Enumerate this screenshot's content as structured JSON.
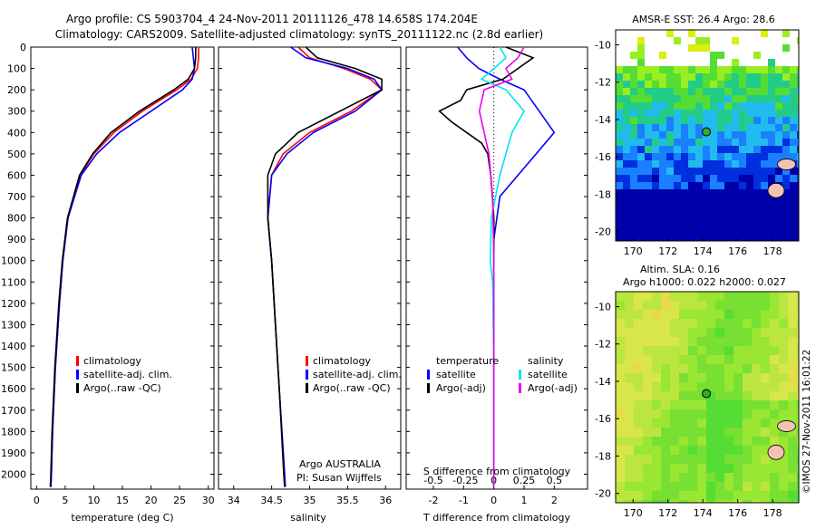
{
  "title": {
    "line1": "Argo profile: CS 5903704_4 24-Nov-2011 20111126_478 14.658S 174.204E",
    "line2": "Climatology: CARS2009. Satellite-adjusted climatology: synTS_20111122.nc (2.8d earlier)"
  },
  "colors": {
    "climatology": "#ff0000",
    "satellite": "#0000ff",
    "argo": "#000000",
    "sat_sal": "#00e5ee",
    "argo_sal": "#ee00ee"
  },
  "chart_data": [
    {
      "type": "line",
      "name": "temperature-profile",
      "xlabel": "temperature (deg C)",
      "ylabel": "",
      "xlim": [
        -1,
        31
      ],
      "ylim": [
        2070,
        0
      ],
      "xticks": [
        0,
        5,
        10,
        15,
        20,
        25,
        30
      ],
      "yticks": [
        0,
        100,
        200,
        300,
        400,
        500,
        600,
        700,
        800,
        900,
        1000,
        1100,
        1200,
        1300,
        1400,
        1500,
        1600,
        1700,
        1800,
        1900,
        2000
      ],
      "legend": [
        "climatology",
        "satellite-adj. clim.",
        "Argo(..raw -QC)"
      ],
      "series": [
        {
          "name": "climatology",
          "depth": [
            0,
            50,
            100,
            150,
            200,
            300,
            400,
            500,
            600,
            800,
            1000,
            1200,
            1500,
            1800,
            2000,
            2060
          ],
          "values": [
            28.3,
            28.3,
            28.1,
            27.0,
            24.5,
            18.5,
            13.5,
            10.0,
            7.6,
            5.5,
            4.6,
            4.0,
            3.3,
            2.8,
            2.6,
            2.5
          ]
        },
        {
          "name": "satellite-adj. clim.",
          "depth": [
            0,
            50,
            100,
            150,
            200,
            300,
            400,
            500,
            600,
            800,
            1000,
            1200,
            1500,
            1800,
            2000,
            2060
          ],
          "values": [
            27.2,
            27.4,
            27.6,
            27.2,
            25.5,
            20.0,
            14.5,
            10.5,
            7.8,
            5.5,
            4.6,
            4.0,
            3.3,
            2.8,
            2.6,
            2.5
          ]
        },
        {
          "name": "Argo(..raw -QC)",
          "depth": [
            0,
            50,
            100,
            150,
            200,
            300,
            400,
            500,
            600,
            800,
            1000,
            1200,
            1500,
            1800,
            2000,
            2060
          ],
          "values": [
            27.8,
            27.8,
            27.6,
            26.5,
            24.0,
            18.0,
            13.0,
            9.8,
            7.5,
            5.4,
            4.5,
            3.9,
            3.2,
            2.7,
            2.5,
            2.4
          ]
        }
      ]
    },
    {
      "type": "line",
      "name": "salinity-profile",
      "xlabel": "salinity",
      "ylabel": "",
      "xlim": [
        33.8,
        36.2
      ],
      "ylim": [
        2070,
        0
      ],
      "xticks": [
        34,
        34.5,
        35,
        35.5,
        36
      ],
      "legend": [
        "climatology",
        "satellite-adj. clim.",
        "Argo(..raw -QC)"
      ],
      "annotation": [
        "Argo AUSTRALIA",
        "PI: Susan Wijffels"
      ],
      "series": [
        {
          "name": "climatology",
          "depth": [
            0,
            50,
            100,
            150,
            200,
            300,
            400,
            500,
            600,
            800,
            1000,
            1300,
            1600,
            2000,
            2060
          ],
          "values": [
            34.85,
            35.0,
            35.45,
            35.8,
            35.95,
            35.55,
            35.0,
            34.65,
            34.5,
            34.45,
            34.5,
            34.55,
            34.6,
            34.67,
            34.68
          ]
        },
        {
          "name": "satellite-adj. clim.",
          "depth": [
            0,
            50,
            100,
            150,
            200,
            300,
            400,
            500,
            600,
            800,
            1000,
            1300,
            1600,
            2000,
            2060
          ],
          "values": [
            34.75,
            34.95,
            35.5,
            35.85,
            35.95,
            35.6,
            35.05,
            34.7,
            34.5,
            34.45,
            34.5,
            34.55,
            34.6,
            34.67,
            34.68
          ]
        },
        {
          "name": "Argo(..raw -QC)",
          "depth": [
            0,
            50,
            100,
            150,
            200,
            300,
            400,
            500,
            600,
            800,
            1000,
            1300,
            1600,
            2000,
            2060
          ],
          "values": [
            34.95,
            35.1,
            35.6,
            35.95,
            35.95,
            35.4,
            34.85,
            34.55,
            34.45,
            34.45,
            34.5,
            34.55,
            34.6,
            34.66,
            34.67
          ]
        }
      ]
    },
    {
      "type": "line",
      "name": "difference-profile",
      "xlabel": "T difference from climatology",
      "xlabel2": "S difference from climatology",
      "xlim": [
        -2.9,
        3.1
      ],
      "ylim": [
        2070,
        0
      ],
      "xticks": [
        -2,
        -1,
        0,
        1,
        2
      ],
      "xticks2": [
        "-0.5",
        "-0.25",
        "0",
        "0.25",
        "0.5"
      ],
      "legend": {
        "temperature": "temperature",
        "salinity": "salinity",
        "sat": "satellite",
        "argo": "Argo(-adj)"
      },
      "series": [
        {
          "name": "temperature satellite",
          "depth": [
            0,
            50,
            100,
            150,
            200,
            300,
            400,
            500,
            700,
            900,
            1100,
            1500,
            2000,
            2060
          ],
          "values": [
            -1.2,
            -0.9,
            -0.5,
            0.2,
            1.0,
            1.5,
            2.0,
            1.4,
            0.2,
            0.0,
            0.0,
            0.0,
            0.0,
            0.0
          ]
        },
        {
          "name": "temperature Argo(-adj)",
          "depth": [
            0,
            50,
            100,
            150,
            200,
            250,
            300,
            350,
            400,
            450,
            500,
            600,
            800,
            1000,
            1500,
            2000,
            2060
          ],
          "values": [
            0.4,
            1.3,
            0.8,
            0.3,
            -0.9,
            -1.1,
            -1.8,
            -1.4,
            -0.9,
            -0.4,
            -0.2,
            -0.1,
            0.0,
            0.0,
            0.0,
            0.0,
            0.0
          ]
        },
        {
          "name": "salinity satellite",
          "depth": [
            0,
            50,
            100,
            150,
            200,
            300,
            400,
            600,
            800,
            1000,
            1100,
            1500,
            2000,
            2060
          ],
          "values": [
            0.05,
            0.1,
            0.0,
            -0.1,
            0.1,
            0.25,
            0.15,
            0.05,
            -0.02,
            -0.03,
            -0.01,
            0.0,
            0.0,
            0.0
          ]
        },
        {
          "name": "salinity Argo(-adj)",
          "depth": [
            0,
            50,
            100,
            150,
            200,
            300,
            400,
            500,
            700,
            1000,
            1500,
            2000,
            2060
          ],
          "values": [
            0.25,
            0.2,
            0.1,
            0.15,
            -0.08,
            -0.12,
            -0.08,
            -0.04,
            -0.01,
            0.0,
            0.0,
            0.0,
            0.0
          ]
        }
      ]
    },
    {
      "type": "heatmap",
      "name": "sst-map",
      "title": "AMSR-E SST: 26.4 Argo: 28.6",
      "xlim": [
        169,
        179.5
      ],
      "ylim": [
        -20.5,
        -9.2
      ],
      "xticks": [
        170,
        172,
        174,
        176,
        178
      ],
      "yticks": [
        -10,
        -12,
        -14,
        -16,
        -18,
        -20
      ],
      "marker": {
        "lon": 174.204,
        "lat": -14.658
      }
    },
    {
      "type": "heatmap",
      "name": "sla-map",
      "title1": "Altim. SLA: 0.16",
      "title2": "Argo h1000: 0.022 h2000: 0.027",
      "xlim": [
        169,
        179.5
      ],
      "ylim": [
        -20.5,
        -9.2
      ],
      "xticks": [
        170,
        172,
        174,
        176,
        178
      ],
      "yticks": [
        -10,
        -12,
        -14,
        -16,
        -18,
        -20
      ],
      "marker": {
        "lon": 174.204,
        "lat": -14.658
      }
    }
  ],
  "footer": "©IMOS 27-Nov-2011 16:01:22"
}
